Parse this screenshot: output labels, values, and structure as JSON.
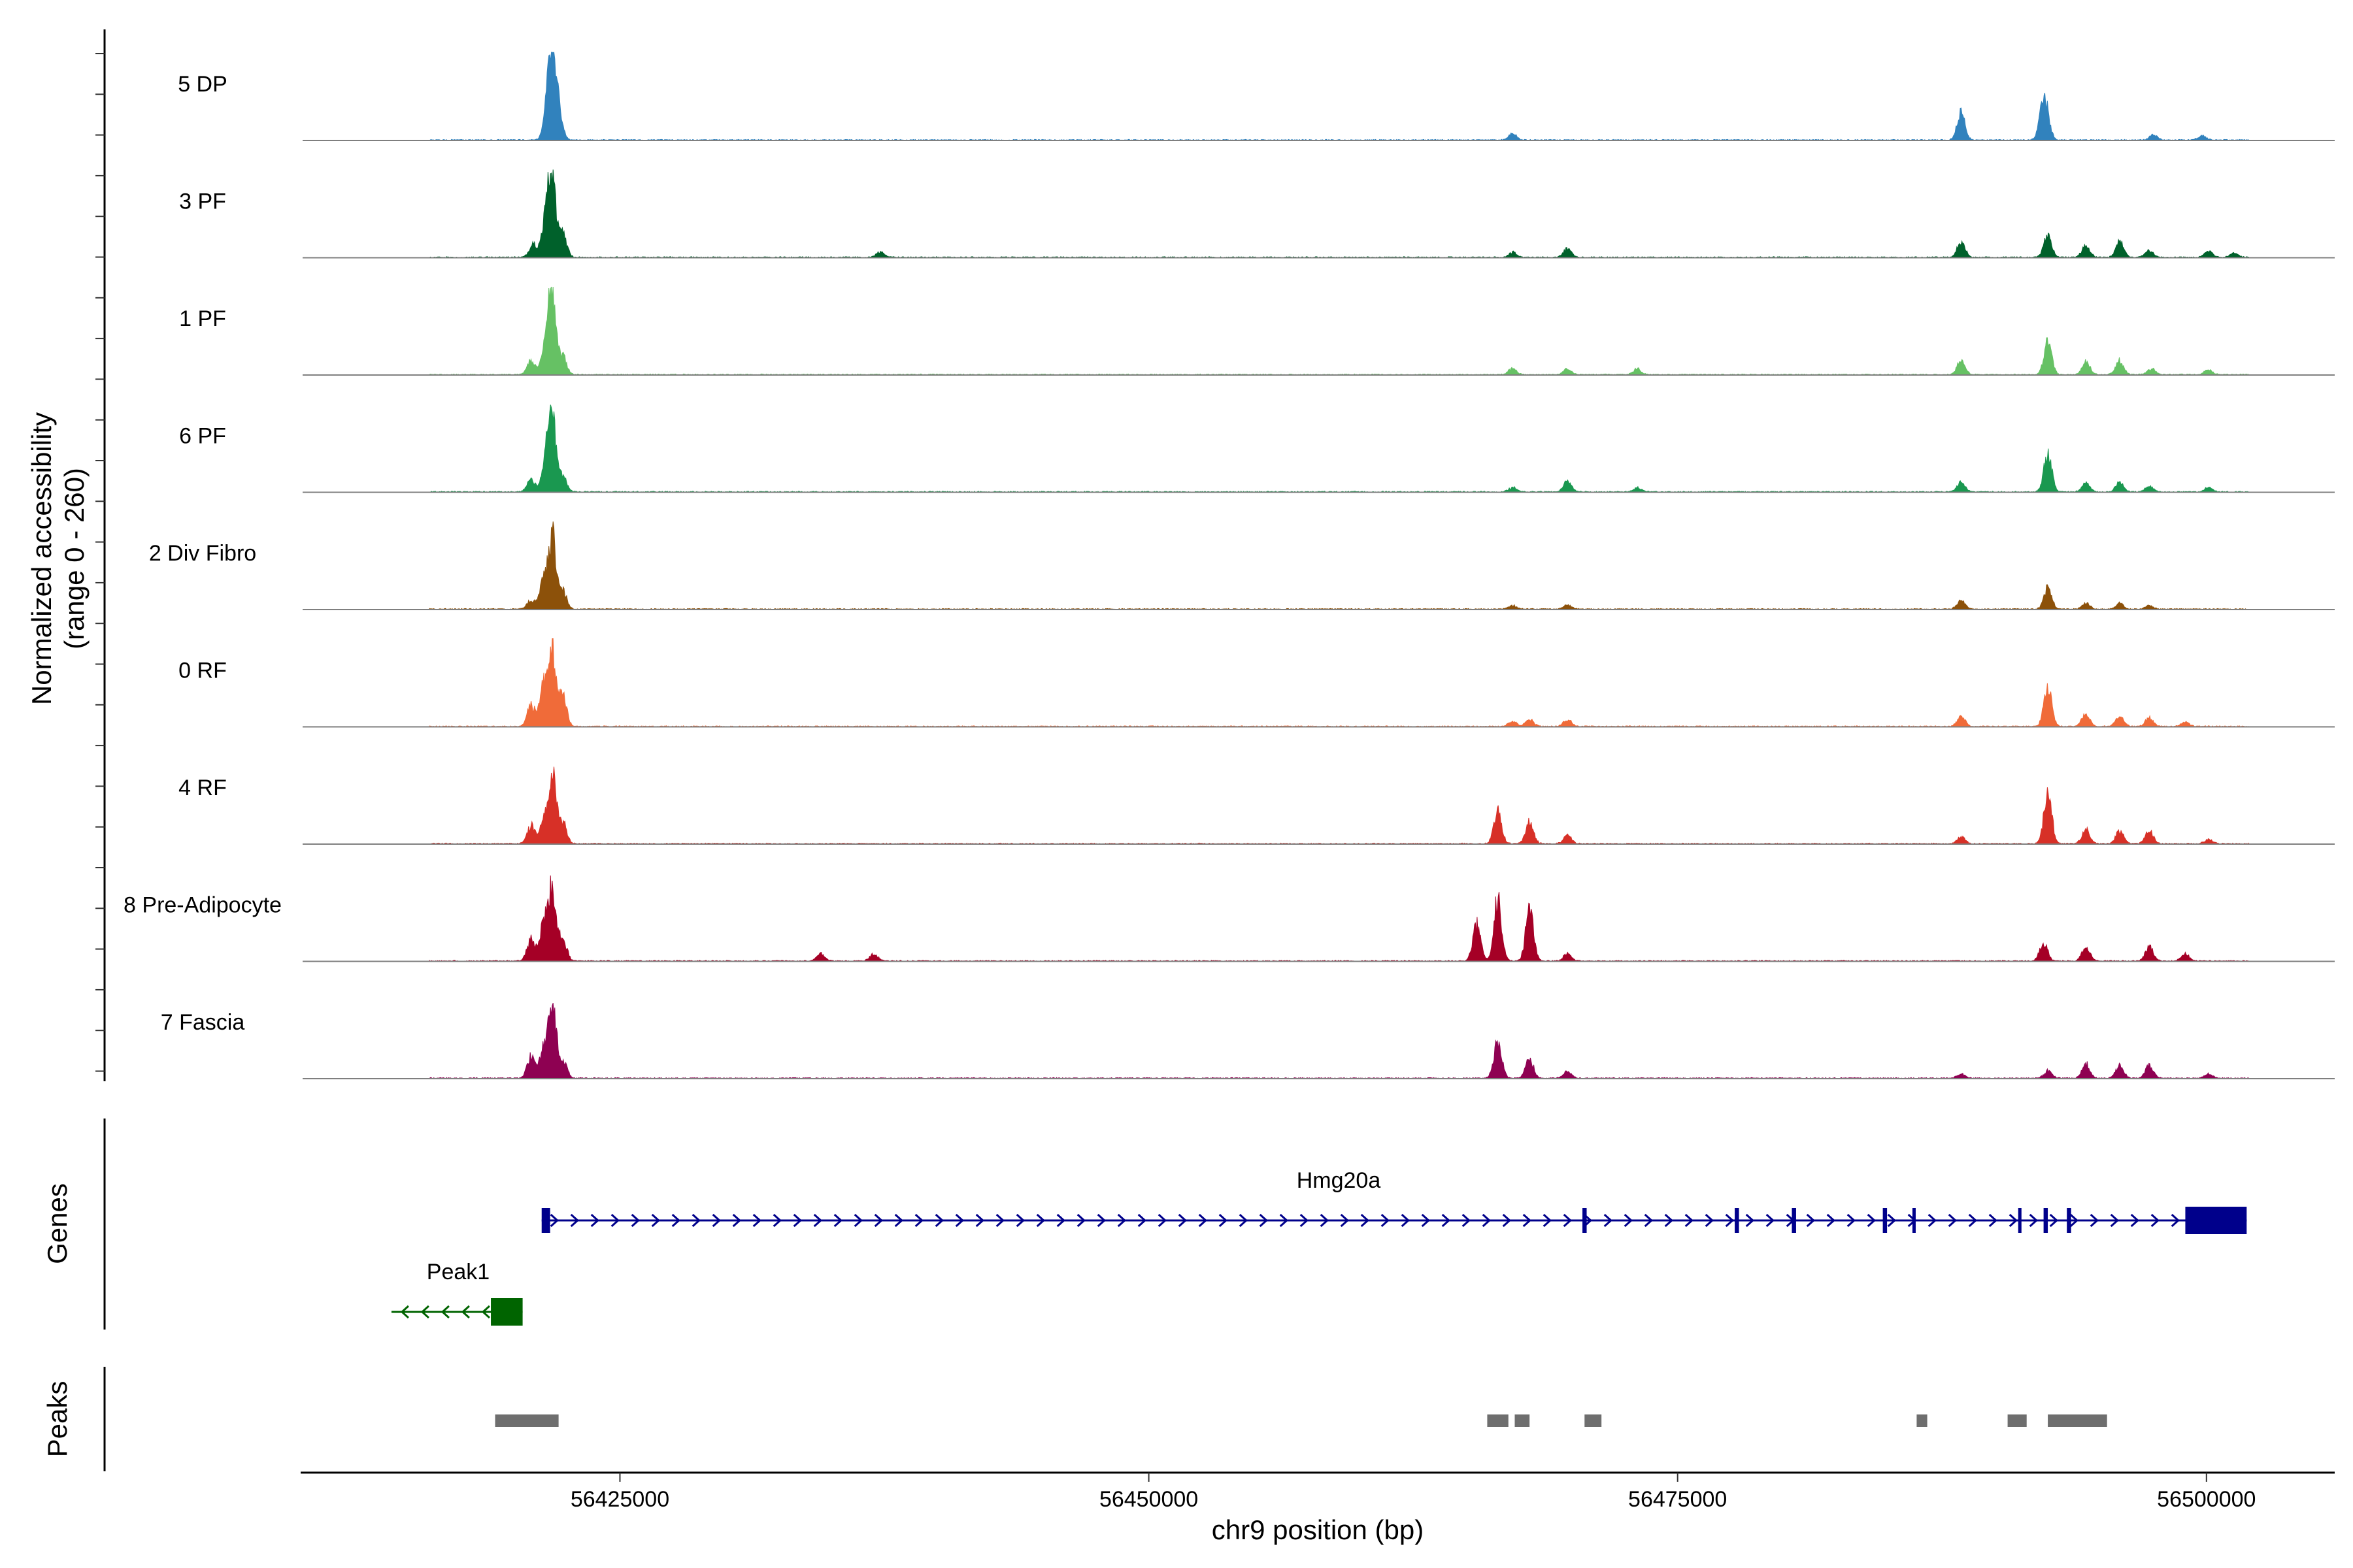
{
  "chart_data": {
    "type": "genome-coverage-tracks",
    "x": {
      "label": "chr9 position (bp)",
      "range": [
        56410000,
        56506000
      ],
      "ticks": [
        56425000,
        56450000,
        56475000,
        56500000
      ],
      "tick_labels": [
        "56425000",
        "56450000",
        "56475000",
        "56500000"
      ]
    },
    "y": {
      "label_line1": "Normalized accessibility",
      "label_line2": "(range 0 - 260)",
      "range": [
        0,
        260
      ]
    },
    "tracks": [
      {
        "name": "5 DP",
        "color": "#3182bd",
        "peaks": [
          [
            56421800,
            1.0
          ],
          [
            56421600,
            0.55
          ],
          [
            56422100,
            0.4
          ],
          [
            56467200,
            0.09
          ],
          [
            56488400,
            0.38
          ],
          [
            56492400,
            0.45
          ],
          [
            56492200,
            0.22
          ],
          [
            56497500,
            0.08
          ],
          [
            56499800,
            0.06
          ]
        ]
      },
      {
        "name": "3 PF",
        "color": "#00612b",
        "peaks": [
          [
            56421800,
            1.0
          ],
          [
            56421500,
            0.55
          ],
          [
            56422300,
            0.32
          ],
          [
            56420900,
            0.18
          ],
          [
            56437300,
            0.08
          ],
          [
            56467200,
            0.07
          ],
          [
            56469800,
            0.12
          ],
          [
            56488400,
            0.22
          ],
          [
            56492500,
            0.3
          ],
          [
            56494300,
            0.16
          ],
          [
            56495900,
            0.22
          ],
          [
            56497300,
            0.1
          ],
          [
            56500100,
            0.08
          ],
          [
            56501300,
            0.06
          ]
        ]
      },
      {
        "name": "1 PF",
        "color": "#66c164",
        "peaks": [
          [
            56421800,
            1.0
          ],
          [
            56421500,
            0.45
          ],
          [
            56422300,
            0.25
          ],
          [
            56420800,
            0.2
          ],
          [
            56467200,
            0.09
          ],
          [
            56469800,
            0.08
          ],
          [
            56473100,
            0.08
          ],
          [
            56488400,
            0.2
          ],
          [
            56492500,
            0.45
          ],
          [
            56494300,
            0.18
          ],
          [
            56495900,
            0.2
          ],
          [
            56497400,
            0.08
          ],
          [
            56500100,
            0.07
          ]
        ]
      },
      {
        "name": "6 PF",
        "color": "#1a9850",
        "peaks": [
          [
            56421800,
            1.0
          ],
          [
            56421500,
            0.45
          ],
          [
            56422300,
            0.22
          ],
          [
            56420800,
            0.18
          ],
          [
            56467200,
            0.06
          ],
          [
            56469800,
            0.16
          ],
          [
            56473100,
            0.06
          ],
          [
            56488400,
            0.13
          ],
          [
            56492500,
            0.55
          ],
          [
            56494300,
            0.12
          ],
          [
            56495900,
            0.13
          ],
          [
            56497300,
            0.08
          ],
          [
            56500100,
            0.06
          ]
        ]
      },
      {
        "name": "2 Div Fibro",
        "color": "#8c510a",
        "peaks": [
          [
            56421800,
            1.0
          ],
          [
            56421400,
            0.38
          ],
          [
            56422300,
            0.25
          ],
          [
            56420800,
            0.12
          ],
          [
            56467200,
            0.05
          ],
          [
            56469800,
            0.06
          ],
          [
            56488400,
            0.12
          ],
          [
            56492500,
            0.3
          ],
          [
            56494300,
            0.08
          ],
          [
            56495900,
            0.08
          ],
          [
            56497300,
            0.05
          ]
        ]
      },
      {
        "name": "0 RF",
        "color": "#f06b39",
        "peaks": [
          [
            56421800,
            1.0
          ],
          [
            56421400,
            0.55
          ],
          [
            56422300,
            0.4
          ],
          [
            56420800,
            0.3
          ],
          [
            56467200,
            0.07
          ],
          [
            56468000,
            0.1
          ],
          [
            56469800,
            0.1
          ],
          [
            56488400,
            0.14
          ],
          [
            56492500,
            0.55
          ],
          [
            56494300,
            0.18
          ],
          [
            56495900,
            0.15
          ],
          [
            56497300,
            0.12
          ],
          [
            56499000,
            0.06
          ]
        ]
      },
      {
        "name": "4 RF",
        "color": "#d73027",
        "peaks": [
          [
            56421800,
            1.0
          ],
          [
            56421400,
            0.3
          ],
          [
            56422300,
            0.3
          ],
          [
            56420800,
            0.25
          ],
          [
            56466500,
            0.45
          ],
          [
            56468000,
            0.3
          ],
          [
            56469800,
            0.12
          ],
          [
            56488400,
            0.1
          ],
          [
            56492500,
            0.7
          ],
          [
            56494300,
            0.2
          ],
          [
            56495900,
            0.18
          ],
          [
            56497300,
            0.18
          ],
          [
            56500100,
            0.06
          ]
        ]
      },
      {
        "name": "8 Pre-Adipocyte",
        "color": "#a50026",
        "peaks": [
          [
            56421800,
            1.0
          ],
          [
            56421400,
            0.5
          ],
          [
            56422300,
            0.3
          ],
          [
            56420800,
            0.3
          ],
          [
            56434500,
            0.1
          ],
          [
            56437000,
            0.1
          ],
          [
            56465500,
            0.5
          ],
          [
            56466500,
            0.85
          ],
          [
            56468000,
            0.7
          ],
          [
            56469800,
            0.1
          ],
          [
            56492300,
            0.25
          ],
          [
            56494300,
            0.2
          ],
          [
            56497300,
            0.2
          ],
          [
            56499000,
            0.1
          ]
        ]
      },
      {
        "name": "7 Fascia",
        "color": "#8e0152",
        "peaks": [
          [
            56421800,
            1.0
          ],
          [
            56421400,
            0.4
          ],
          [
            56422300,
            0.25
          ],
          [
            56420800,
            0.3
          ],
          [
            56466500,
            0.5
          ],
          [
            56468000,
            0.28
          ],
          [
            56469800,
            0.1
          ],
          [
            56488400,
            0.06
          ],
          [
            56492500,
            0.1
          ],
          [
            56494300,
            0.2
          ],
          [
            56495900,
            0.18
          ],
          [
            56497300,
            0.18
          ],
          [
            56500100,
            0.06
          ]
        ]
      }
    ],
    "genes": [
      {
        "name": "Hmg20a",
        "color": "#00008b",
        "strand": "+",
        "start": 56421300,
        "end": 56501900,
        "exons": [
          [
            56421300,
            56421700
          ],
          [
            56470500,
            56470700
          ],
          [
            56477700,
            56477900
          ],
          [
            56480400,
            56480600
          ],
          [
            56484700,
            56484900
          ],
          [
            56486100,
            56486200
          ],
          [
            56491100,
            56491200
          ],
          [
            56492300,
            56492500
          ],
          [
            56493400,
            56493600
          ],
          [
            56499000,
            56501900
          ]
        ]
      },
      {
        "name": "Peak1",
        "color": "#006400",
        "strand": "-",
        "start": 56414200,
        "end": 56420400,
        "exons": [
          [
            56418900,
            56420400
          ]
        ]
      }
    ],
    "peaks_track": {
      "label": "Peaks",
      "regions": [
        [
          56419100,
          56422100
        ],
        [
          56466000,
          56467000
        ],
        [
          56467300,
          56468000
        ],
        [
          56470600,
          56471400
        ],
        [
          56486300,
          56486800
        ],
        [
          56490600,
          56491500
        ],
        [
          56492500,
          56495300
        ]
      ]
    },
    "genes_track_label": "Genes"
  }
}
